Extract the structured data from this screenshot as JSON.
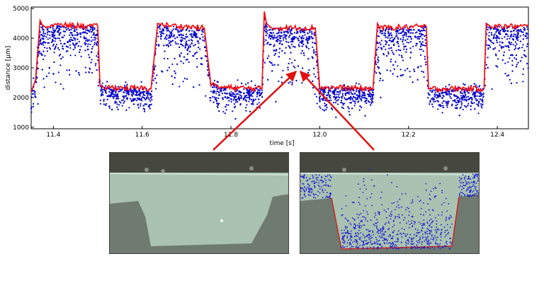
{
  "chart_data": {
    "type": "scatter",
    "xlabel": "time [s]",
    "ylabel": "distance [μm]",
    "xlim": [
      11.35,
      12.47
    ],
    "ylim": [
      950,
      5050
    ],
    "xticks": [
      "11.4",
      "11.6",
      "11.8",
      "12.0",
      "12.2",
      "12.4"
    ],
    "yticks": [
      "1000",
      "2000",
      "3000",
      "4000",
      "5000"
    ],
    "grid": false,
    "series": [
      {
        "style": "scatter",
        "color": "#0000cc"
      },
      {
        "style": "line",
        "color": "#ff0000",
        "x": [
          11.35,
          11.36,
          11.37,
          11.375,
          11.385,
          11.39,
          11.5,
          11.505,
          11.515,
          11.62,
          11.635,
          11.645,
          11.74,
          11.755,
          11.76,
          11.77,
          11.87,
          11.875,
          11.88,
          11.89,
          11.99,
          12.0,
          12.005,
          12.12,
          12.13,
          12.135,
          12.24,
          12.245,
          12.255,
          12.37,
          12.375,
          12.385,
          12.47
        ],
        "y": [
          2200,
          2600,
          4600,
          4450,
          4350,
          4450,
          4400,
          2400,
          2350,
          2300,
          4500,
          4450,
          4350,
          2400,
          2500,
          2350,
          2300,
          4900,
          4500,
          4350,
          4350,
          2300,
          2350,
          2300,
          4500,
          4350,
          4400,
          2300,
          2300,
          2300,
          4500,
          4400,
          4400
        ]
      }
    ]
  },
  "colors": {
    "scatter": "#0000cc",
    "line": "#ff0000",
    "arrow": "#e01010",
    "material": "#a9c2b2",
    "substrate": "#6f7a70",
    "top_band": "#46483f"
  },
  "photos": [
    {
      "subject": "weld cross-section micrograph"
    },
    {
      "subject": "weld cross-section micrograph with overlaid scatter points"
    }
  ]
}
